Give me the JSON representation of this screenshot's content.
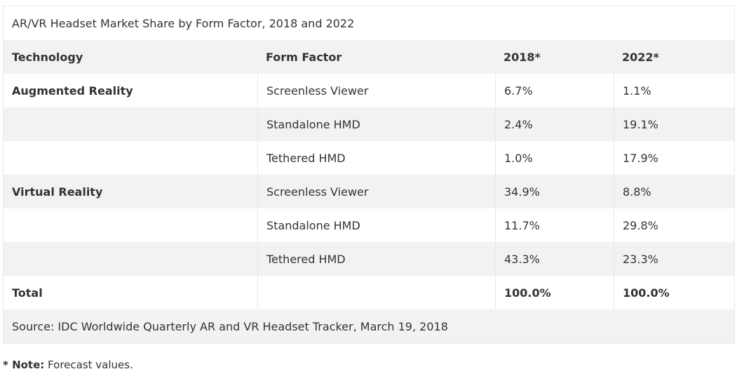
{
  "table": {
    "title": "AR/VR Headset Market Share by Form Factor, 2018 and 2022",
    "headers": [
      "Technology",
      "Form Factor",
      "2018*",
      "2022*"
    ],
    "rows": [
      {
        "tech": "Augmented Reality",
        "form": "Screenless Viewer",
        "y2018": "6.7%",
        "y2022": "1.1%"
      },
      {
        "tech": "",
        "form": "Standalone HMD",
        "y2018": "2.4%",
        "y2022": "19.1%"
      },
      {
        "tech": "",
        "form": "Tethered HMD",
        "y2018": "1.0%",
        "y2022": "17.9%"
      },
      {
        "tech": "Virtual Reality",
        "form": "Screenless Viewer",
        "y2018": "34.9%",
        "y2022": "8.8%"
      },
      {
        "tech": "",
        "form": "Standalone HMD",
        "y2018": "11.7%",
        "y2022": "29.8%"
      },
      {
        "tech": "",
        "form": "Tethered HMD",
        "y2018": "43.3%",
        "y2022": "23.3%"
      }
    ],
    "total": {
      "label": "Total",
      "y2018": "100.0%",
      "y2022": "100.0%"
    },
    "source": "Source: IDC Worldwide Quarterly AR and VR Headset Tracker, March 19, 2018"
  },
  "note": {
    "label": "* Note:",
    "text": " Forecast values."
  }
}
